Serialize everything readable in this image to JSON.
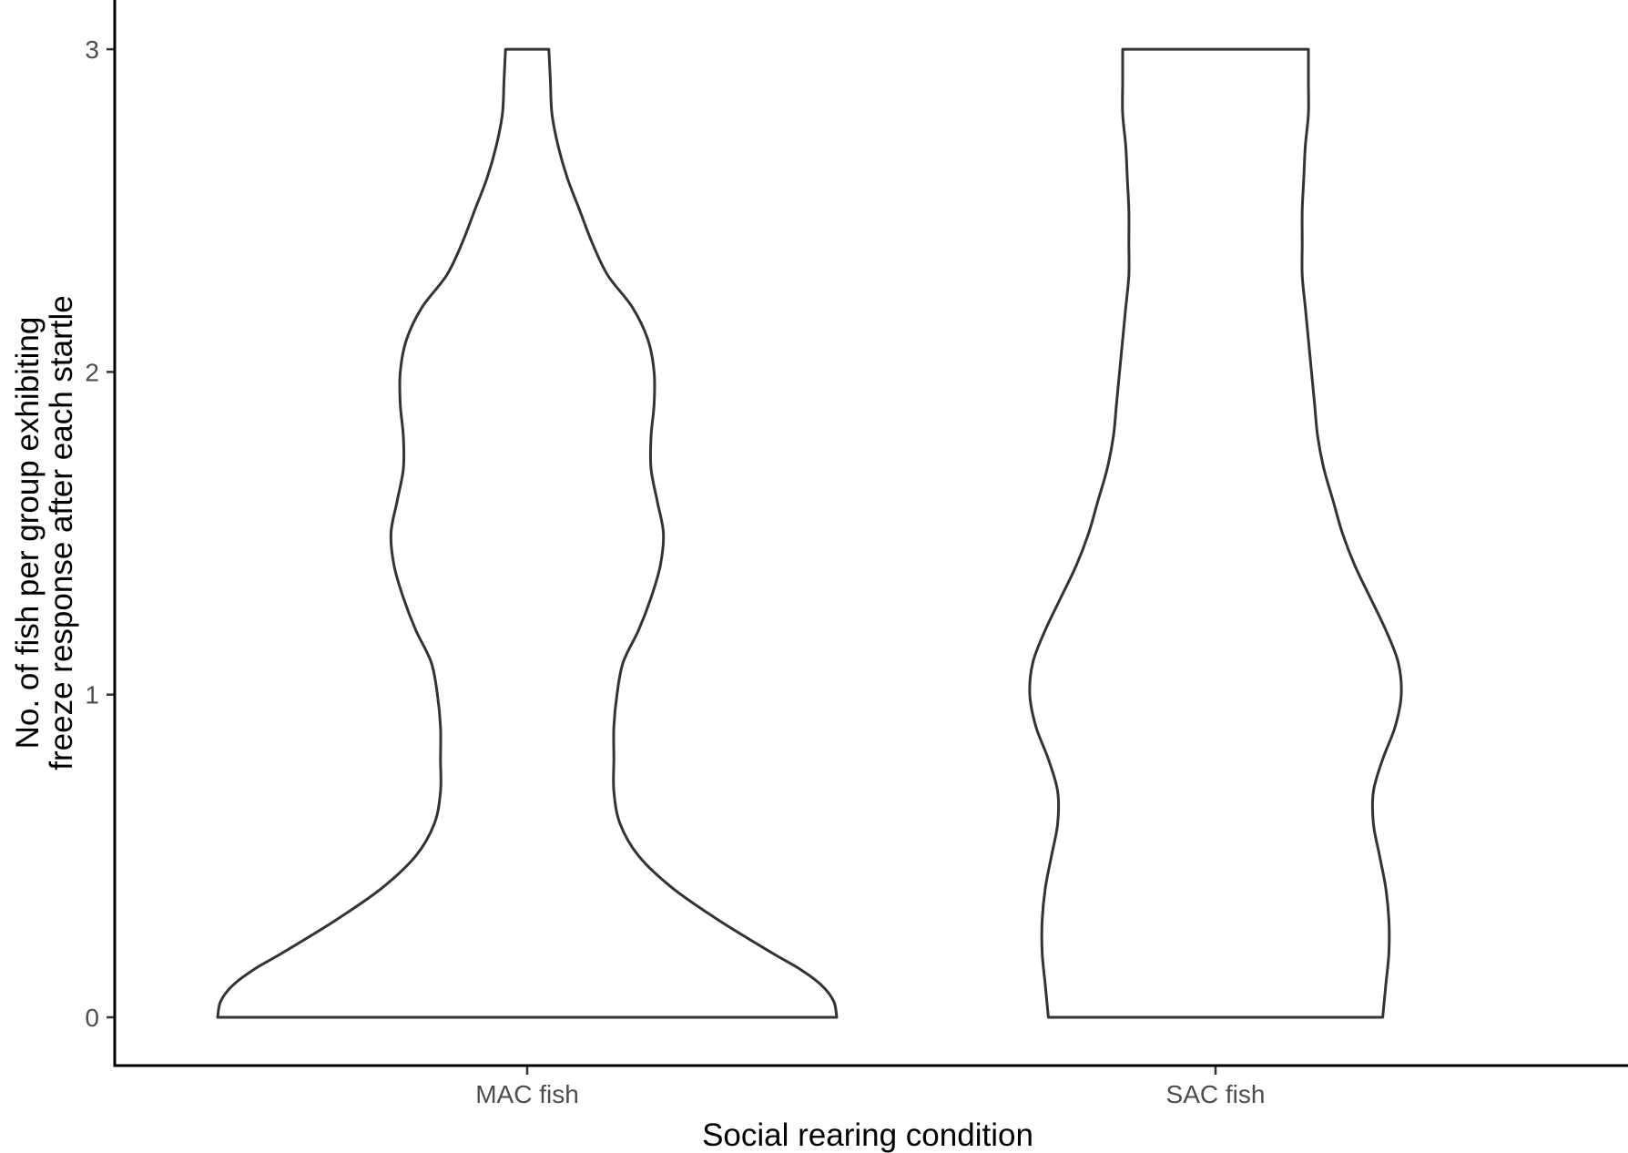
{
  "chart_data": {
    "type": "violin",
    "xlabel": "Social rearing condition",
    "ylabel_lines": [
      "No. of fish per group exhibiting",
      "freeze response after each startle"
    ],
    "categories": [
      "MAC fish",
      "SAC fish"
    ],
    "yticks": [
      "0",
      "1",
      "2",
      "3"
    ],
    "ylim": [
      -0.15,
      3.12
    ],
    "grid": false,
    "legend": "none",
    "series": [
      {
        "category": "MAC fish",
        "density_profile": [
          [
            0.0,
            1.0
          ],
          [
            0.05,
            0.99
          ],
          [
            0.1,
            0.95
          ],
          [
            0.15,
            0.88
          ],
          [
            0.2,
            0.79
          ],
          [
            0.3,
            0.62
          ],
          [
            0.4,
            0.47
          ],
          [
            0.5,
            0.36
          ],
          [
            0.6,
            0.3
          ],
          [
            0.7,
            0.28
          ],
          [
            0.8,
            0.28
          ],
          [
            0.9,
            0.28
          ],
          [
            1.0,
            0.29
          ],
          [
            1.1,
            0.31
          ],
          [
            1.2,
            0.36
          ],
          [
            1.3,
            0.4
          ],
          [
            1.4,
            0.43
          ],
          [
            1.5,
            0.44
          ],
          [
            1.6,
            0.42
          ],
          [
            1.7,
            0.4
          ],
          [
            1.8,
            0.4
          ],
          [
            1.9,
            0.41
          ],
          [
            2.0,
            0.41
          ],
          [
            2.1,
            0.39
          ],
          [
            2.2,
            0.34
          ],
          [
            2.3,
            0.26
          ],
          [
            2.4,
            0.21
          ],
          [
            2.5,
            0.17
          ],
          [
            2.6,
            0.13
          ],
          [
            2.7,
            0.1
          ],
          [
            2.8,
            0.08
          ],
          [
            2.9,
            0.075
          ],
          [
            3.0,
            0.07
          ]
        ]
      },
      {
        "category": "SAC fish",
        "density_profile": [
          [
            0.0,
            0.54
          ],
          [
            0.1,
            0.55
          ],
          [
            0.2,
            0.56
          ],
          [
            0.3,
            0.56
          ],
          [
            0.4,
            0.55
          ],
          [
            0.5,
            0.53
          ],
          [
            0.6,
            0.51
          ],
          [
            0.7,
            0.51
          ],
          [
            0.8,
            0.54
          ],
          [
            0.9,
            0.58
          ],
          [
            1.0,
            0.6
          ],
          [
            1.1,
            0.59
          ],
          [
            1.2,
            0.55
          ],
          [
            1.3,
            0.5
          ],
          [
            1.4,
            0.45
          ],
          [
            1.5,
            0.41
          ],
          [
            1.6,
            0.38
          ],
          [
            1.7,
            0.35
          ],
          [
            1.8,
            0.33
          ],
          [
            1.9,
            0.32
          ],
          [
            2.0,
            0.31
          ],
          [
            2.1,
            0.3
          ],
          [
            2.2,
            0.29
          ],
          [
            2.3,
            0.28
          ],
          [
            2.4,
            0.28
          ],
          [
            2.5,
            0.28
          ],
          [
            2.6,
            0.285
          ],
          [
            2.7,
            0.29
          ],
          [
            2.8,
            0.3
          ],
          [
            2.9,
            0.3
          ],
          [
            3.0,
            0.3
          ]
        ]
      }
    ]
  }
}
